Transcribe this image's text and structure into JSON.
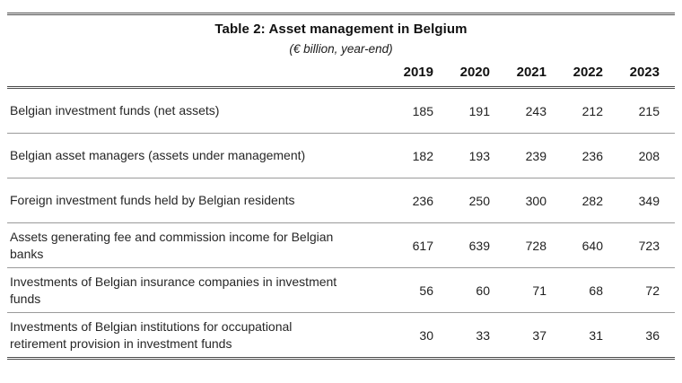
{
  "table": {
    "title": "Table 2: Asset management in Belgium",
    "subtitle": "(€ billion, year-end)",
    "columns": [
      "2019",
      "2020",
      "2021",
      "2022",
      "2023"
    ],
    "rows": [
      {
        "label": "Belgian investment funds (net assets)",
        "values": [
          "185",
          "191",
          "243",
          "212",
          "215"
        ]
      },
      {
        "label": "Belgian asset managers (assets under management)",
        "values": [
          "182",
          "193",
          "239",
          "236",
          "208"
        ]
      },
      {
        "label": "Foreign investment funds held by Belgian residents",
        "values": [
          "236",
          "250",
          "300",
          "282",
          "349"
        ]
      },
      {
        "label": "Assets generating fee and commission income for Belgian banks",
        "values": [
          "617",
          "639",
          "728",
          "640",
          "723"
        ]
      },
      {
        "label": "Investments of Belgian insurance companies in investment funds",
        "values": [
          "56",
          "60",
          "71",
          "68",
          "72"
        ]
      },
      {
        "label": "Investments of Belgian institutions for occupational retirement provision in investment funds",
        "values": [
          "30",
          "33",
          "37",
          "31",
          "36"
        ]
      }
    ],
    "colors": {
      "text": "#1f1f1f",
      "row_rule": "#9a9a9a",
      "heavy_rule": "#4d4d4d"
    }
  }
}
